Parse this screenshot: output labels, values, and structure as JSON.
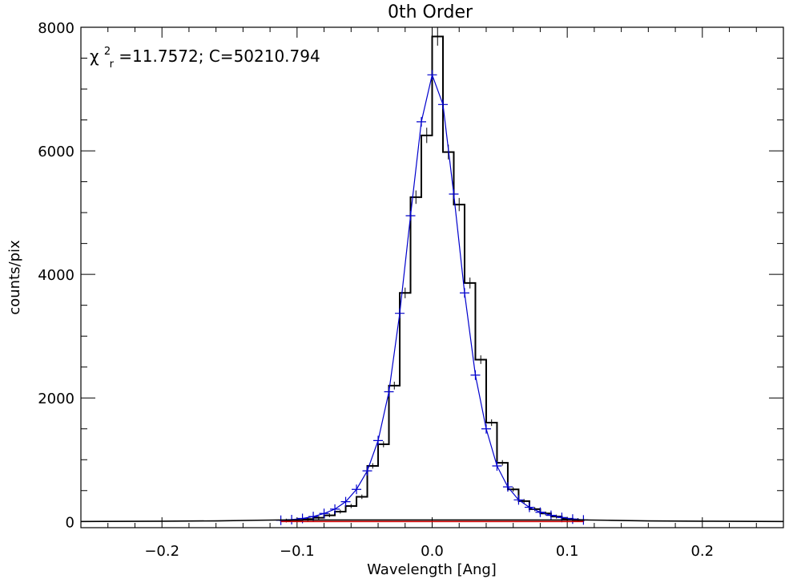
{
  "chart_data": {
    "type": "line",
    "title": "0th Order",
    "xlabel": "Wavelength [Ang]",
    "ylabel": "counts/pix",
    "xlim": [
      -0.26,
      0.26
    ],
    "ylim": [
      -100,
      8000
    ],
    "x_ticks": [
      -0.2,
      -0.1,
      0.0,
      0.1,
      0.2
    ],
    "x_tick_labels": [
      "−0.2",
      "−0.1",
      "0.0",
      "0.1",
      "0.2"
    ],
    "y_ticks": [
      0,
      2000,
      4000,
      6000,
      8000
    ],
    "y_tick_labels": [
      "0",
      "2000",
      "4000",
      "6000",
      "8000"
    ],
    "annotation": {
      "chi": "χ",
      "sup": "2",
      "sub": "r",
      "rest": "=11.7572; C=50210.794"
    },
    "grid": false,
    "colors": {
      "data": "#000000",
      "model": "#0000cc",
      "baseline": "#cc0000"
    },
    "series": [
      {
        "style": "step",
        "color": "#000000",
        "bin_edges": [
          -0.112,
          -0.104,
          -0.096,
          -0.088,
          -0.08,
          -0.072,
          -0.064,
          -0.056,
          -0.048,
          -0.04,
          -0.032,
          -0.024,
          -0.016,
          -0.008,
          0.0,
          0.008,
          0.016,
          0.024,
          0.032,
          0.04,
          0.048,
          0.056,
          0.064,
          0.072,
          0.08,
          0.088,
          0.096,
          0.104,
          0.112
        ],
        "values": [
          15,
          25,
          40,
          60,
          100,
          160,
          250,
          400,
          900,
          1250,
          2200,
          3700,
          5250,
          6250,
          7850,
          5980,
          5130,
          3860,
          2620,
          1600,
          950,
          520,
          330,
          200,
          130,
          80,
          45,
          25
        ]
      },
      {
        "style": "line",
        "color": "#0000cc",
        "x": [
          -0.112,
          -0.104,
          -0.096,
          -0.088,
          -0.08,
          -0.072,
          -0.064,
          -0.056,
          -0.048,
          -0.04,
          -0.032,
          -0.024,
          -0.016,
          -0.008,
          0.0,
          0.008,
          0.016,
          0.024,
          0.032,
          0.04,
          0.048,
          0.056,
          0.064,
          0.072,
          0.08,
          0.088,
          0.096,
          0.104,
          0.112
        ],
        "y": [
          20,
          30,
          50,
          80,
          130,
          200,
          320,
          520,
          820,
          1310,
          2100,
          3370,
          4950,
          6470,
          7230,
          6750,
          5300,
          3700,
          2370,
          1500,
          900,
          560,
          350,
          230,
          150,
          100,
          65,
          40,
          25
        ]
      },
      {
        "style": "line",
        "color": "#000000",
        "x": [
          -0.26,
          -0.2,
          -0.16,
          -0.13,
          -0.112,
          0.112,
          0.13,
          0.16,
          0.2,
          0.26
        ],
        "y": [
          0,
          5,
          10,
          20,
          25,
          25,
          20,
          10,
          5,
          0
        ]
      },
      {
        "style": "line",
        "color": "#cc0000",
        "x": [
          -0.112,
          0.112
        ],
        "y": [
          0,
          0
        ]
      }
    ]
  }
}
